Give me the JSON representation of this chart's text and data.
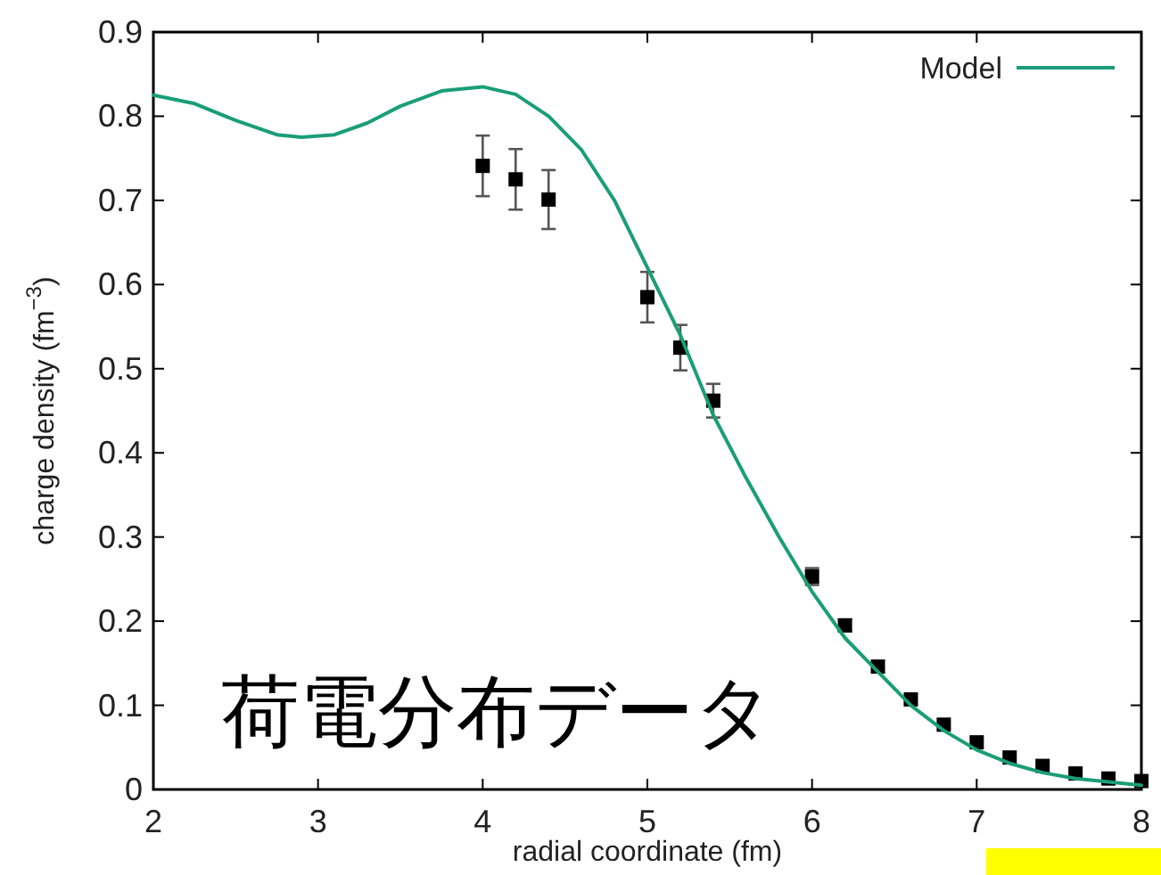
{
  "chart_data": {
    "type": "scatter",
    "xlabel": "radial coordinate (fm)",
    "ylabel": "charge density (fm$^{−3}$)",
    "xlim": [
      2,
      8
    ],
    "ylim": [
      0,
      0.9
    ],
    "xticks": [
      2,
      3,
      4,
      5,
      6,
      7,
      8
    ],
    "yticks": [
      0,
      0.1,
      0.2,
      0.3,
      0.4,
      0.5,
      0.6,
      0.7,
      0.8,
      0.9
    ],
    "grid": false,
    "legend": "top right",
    "marker": "square",
    "annotations": [
      "荷電分布データ"
    ],
    "series": [
      {
        "color": "#000000",
        "x": [
          4.0,
          4.2,
          4.4,
          5.0,
          5.2,
          5.4,
          6.0,
          6.2,
          6.4,
          6.6,
          6.8,
          7.0,
          7.2,
          7.4,
          7.6,
          7.8,
          8.0
        ],
        "values": [
          0.741,
          0.725,
          0.701,
          0.585,
          0.525,
          0.462,
          0.253,
          0.195,
          0.146,
          0.107,
          0.077,
          0.056,
          0.038,
          0.028,
          0.019,
          0.013,
          0.01
        ],
        "errors": [
          0.036,
          0.036,
          0.035,
          0.03,
          0.027,
          0.02,
          0.01,
          0.007,
          null,
          null,
          null,
          null,
          null,
          null,
          null,
          null,
          null
        ]
      },
      {
        "type": "line",
        "name": "Model",
        "color": "#1a9e77",
        "marker": "none",
        "line_style": "solid",
        "x": [
          2.0,
          2.25,
          2.5,
          2.75,
          2.9,
          3.1,
          3.3,
          3.5,
          3.75,
          4.0,
          4.2,
          4.4,
          4.6,
          4.8,
          5.0,
          5.2,
          5.4,
          5.6,
          5.8,
          6.0,
          6.2,
          6.4,
          6.6,
          6.8,
          7.0,
          7.2,
          7.4,
          7.6,
          7.8,
          8.0
        ],
        "values": [
          0.825,
          0.815,
          0.795,
          0.778,
          0.775,
          0.778,
          0.792,
          0.812,
          0.83,
          0.835,
          0.826,
          0.8,
          0.76,
          0.7,
          0.62,
          0.54,
          0.445,
          0.37,
          0.3,
          0.235,
          0.18,
          0.14,
          0.1,
          0.07,
          0.047,
          0.031,
          0.02,
          0.013,
          0.009,
          0.005
        ]
      }
    ]
  }
}
